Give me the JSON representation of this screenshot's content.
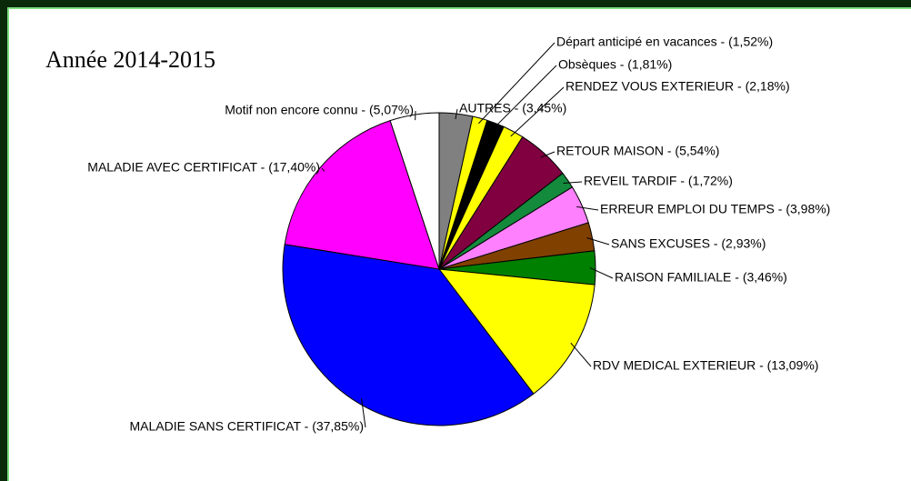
{
  "chart_data": {
    "type": "pie",
    "title": "Année 2014-2015",
    "labels": [
      "AUTRES - (3,45%)",
      "Départ anticipé en vacances - (1,52%)",
      "Obsèques - (1,81%)",
      "RENDEZ VOUS EXTERIEUR - (2,18%)",
      "RETOUR MAISON - (5,54%)",
      "REVEIL TARDIF - (1,72%)",
      "ERREUR EMPLOI DU TEMPS - (3,98%)",
      "SANS EXCUSES - (2,93%)",
      "RAISON FAMILIALE - (3,46%)",
      "RDV MEDICAL EXTERIEUR - (13,09%)",
      "MALADIE SANS CERTIFICAT - (37,85%)",
      "MALADIE AVEC CERTIFICAT - (17,40%)",
      "Motif non encore connu - (5,07%)"
    ],
    "values": [
      3.45,
      1.52,
      1.81,
      2.18,
      5.54,
      1.72,
      3.98,
      2.93,
      3.46,
      13.09,
      37.85,
      17.4,
      5.07
    ],
    "colors": [
      "#808080",
      "#ffff00",
      "#000000",
      "#ffff00",
      "#800040",
      "#138a3c",
      "#ff80ff",
      "#804000",
      "#008000",
      "#ffff00",
      "#0000ff",
      "#ff00ff",
      "#ffffff"
    ]
  }
}
